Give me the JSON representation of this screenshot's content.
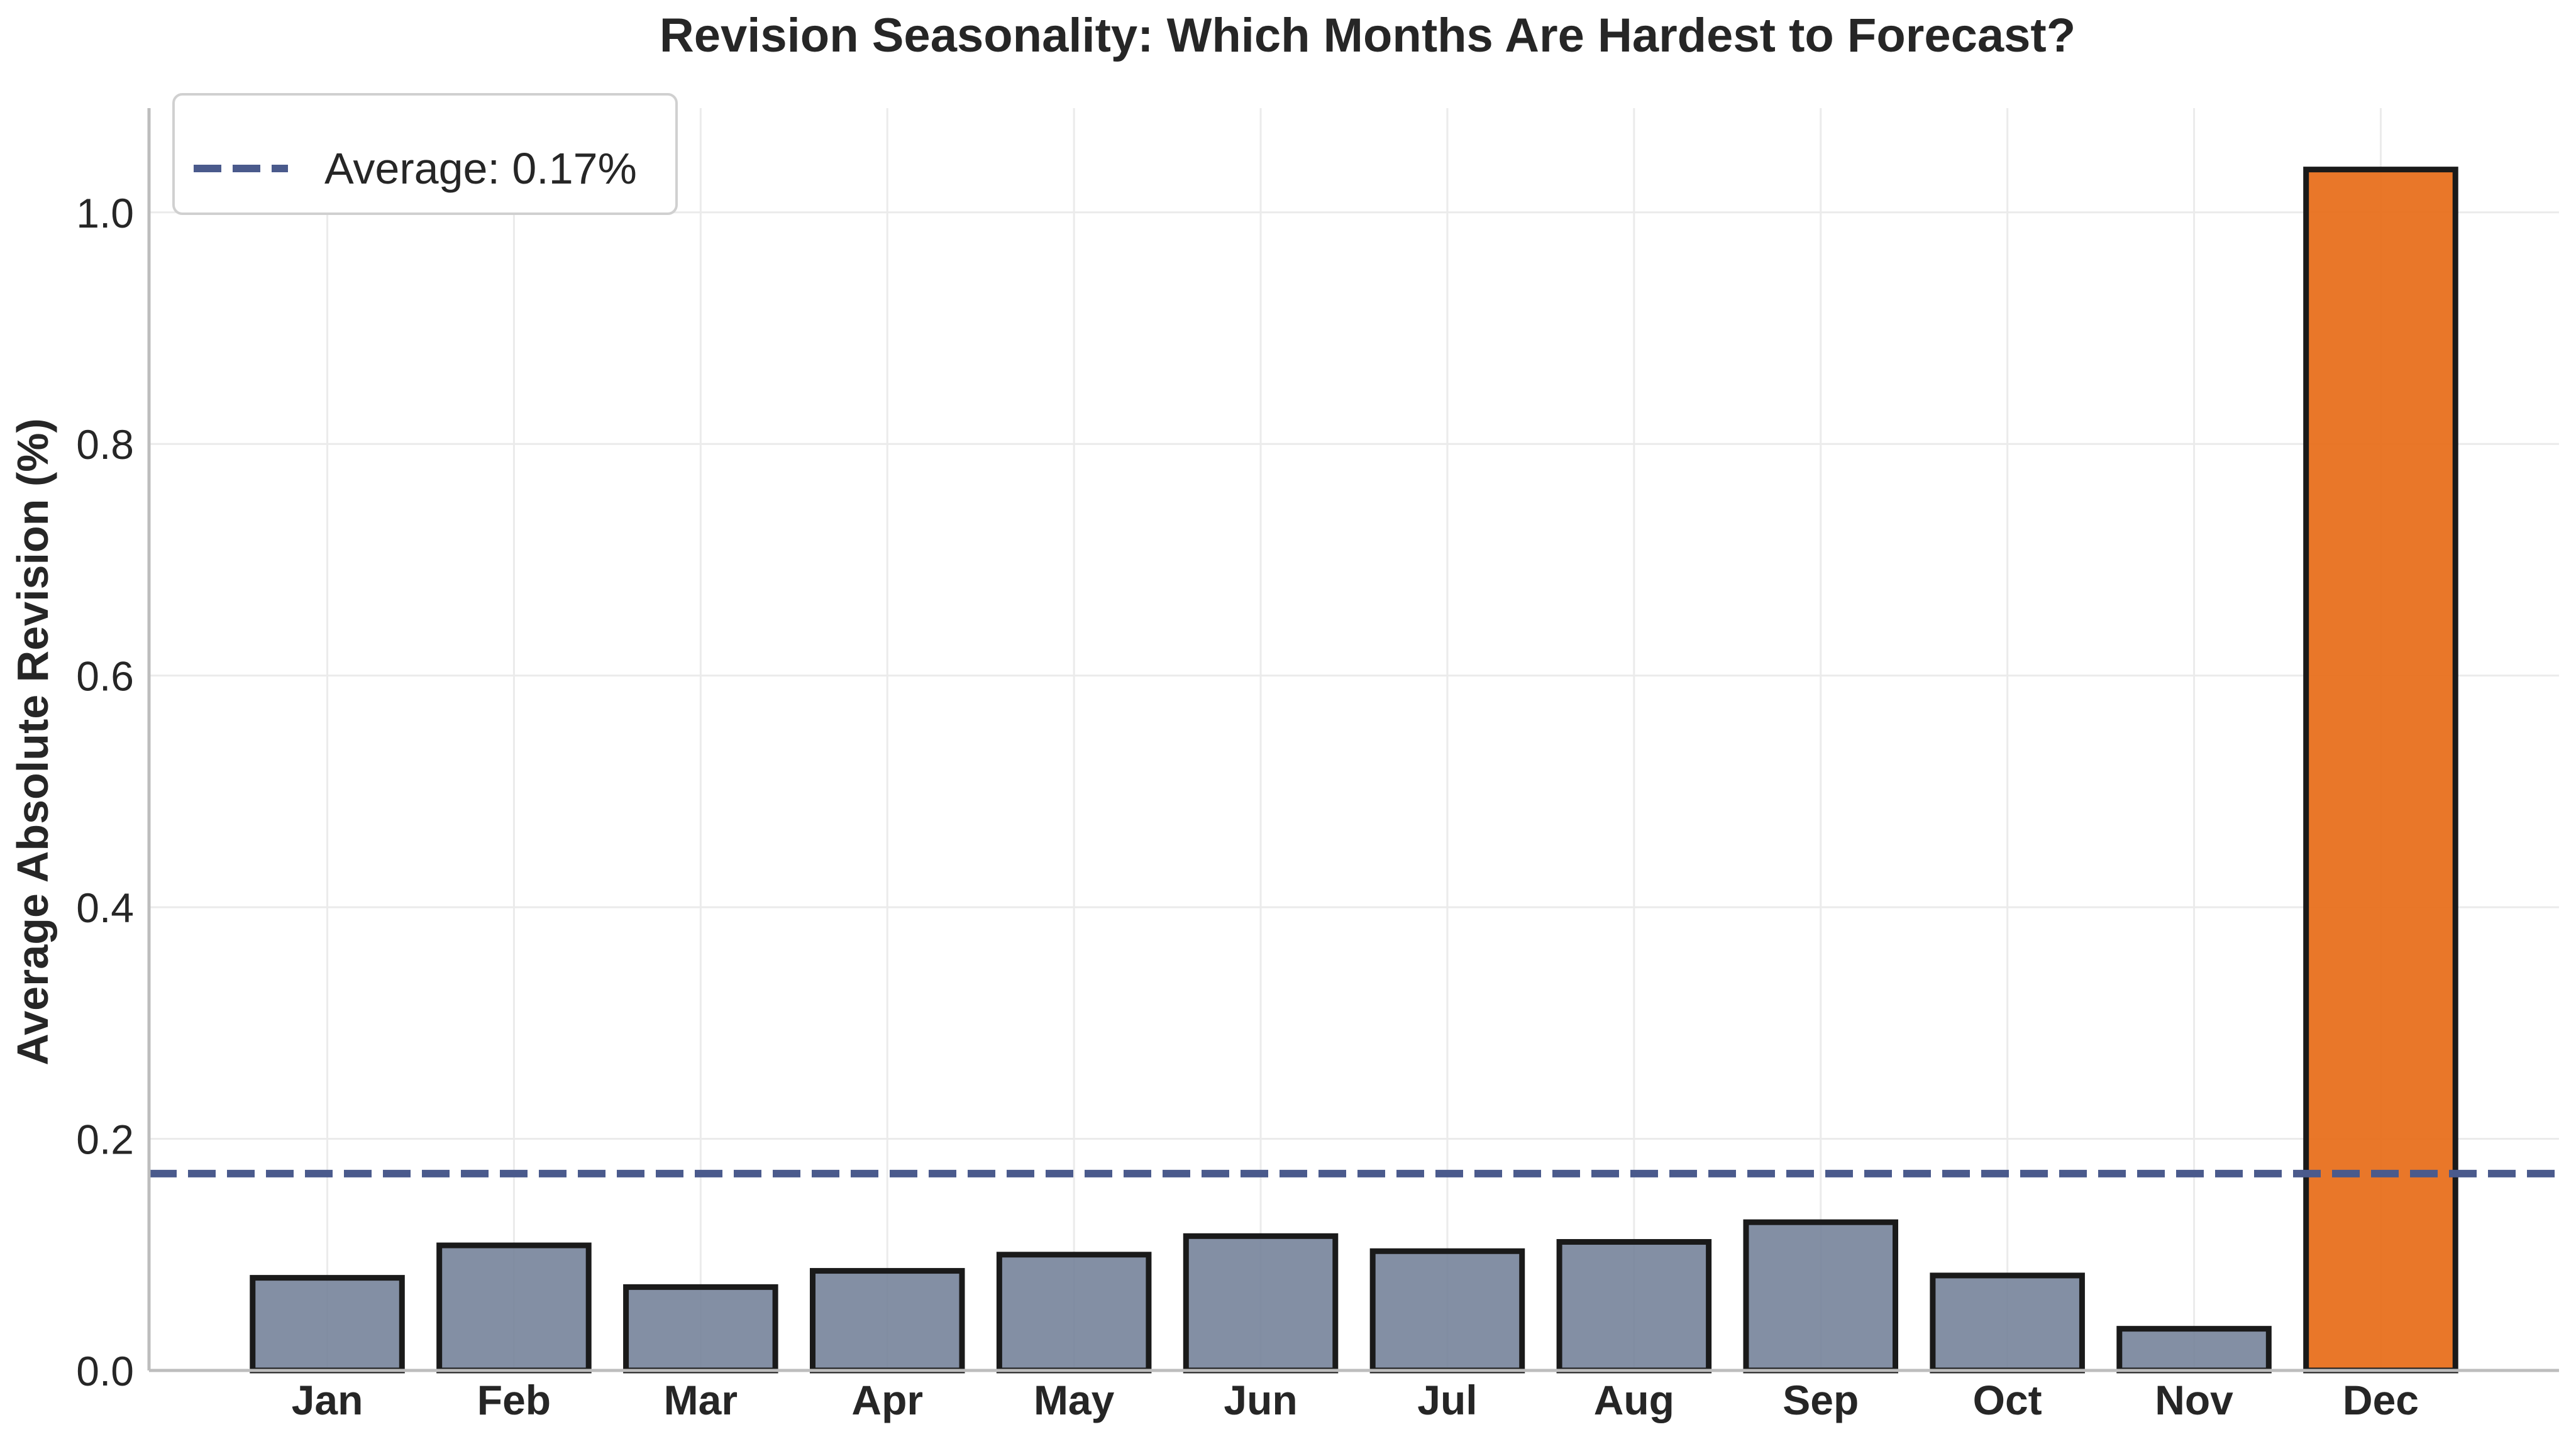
{
  "chart_data": {
    "type": "bar",
    "title": "Revision Seasonality: Which Months Are Hardest to Forecast?",
    "xlabel": "",
    "ylabel": "Average Absolute Revision (%)",
    "categories": [
      "Jan",
      "Feb",
      "Mar",
      "Apr",
      "May",
      "Jun",
      "Jul",
      "Aug",
      "Sep",
      "Oct",
      "Nov",
      "Dec"
    ],
    "values": [
      0.08,
      0.108,
      0.072,
      0.086,
      0.1,
      0.116,
      0.103,
      0.111,
      0.128,
      0.082,
      0.036,
      1.037
    ],
    "highlight": {
      "category": "Dec",
      "color": "#E8701E"
    },
    "bar_color": "#75839A",
    "bar_edge_color": "#1a1a1a",
    "ylim": [
      0,
      1.09
    ],
    "yticks": [
      0.0,
      0.2,
      0.4,
      0.6,
      0.8,
      1.0
    ],
    "ytick_labels": [
      "0.0",
      "0.2",
      "0.4",
      "0.6",
      "0.8",
      "1.0"
    ],
    "reference_line": {
      "value": 0.17,
      "label": "Average: 0.17%",
      "style": "dashed",
      "color": "#4A5A8C"
    },
    "legend": {
      "position": "top-left"
    },
    "grid": true
  }
}
